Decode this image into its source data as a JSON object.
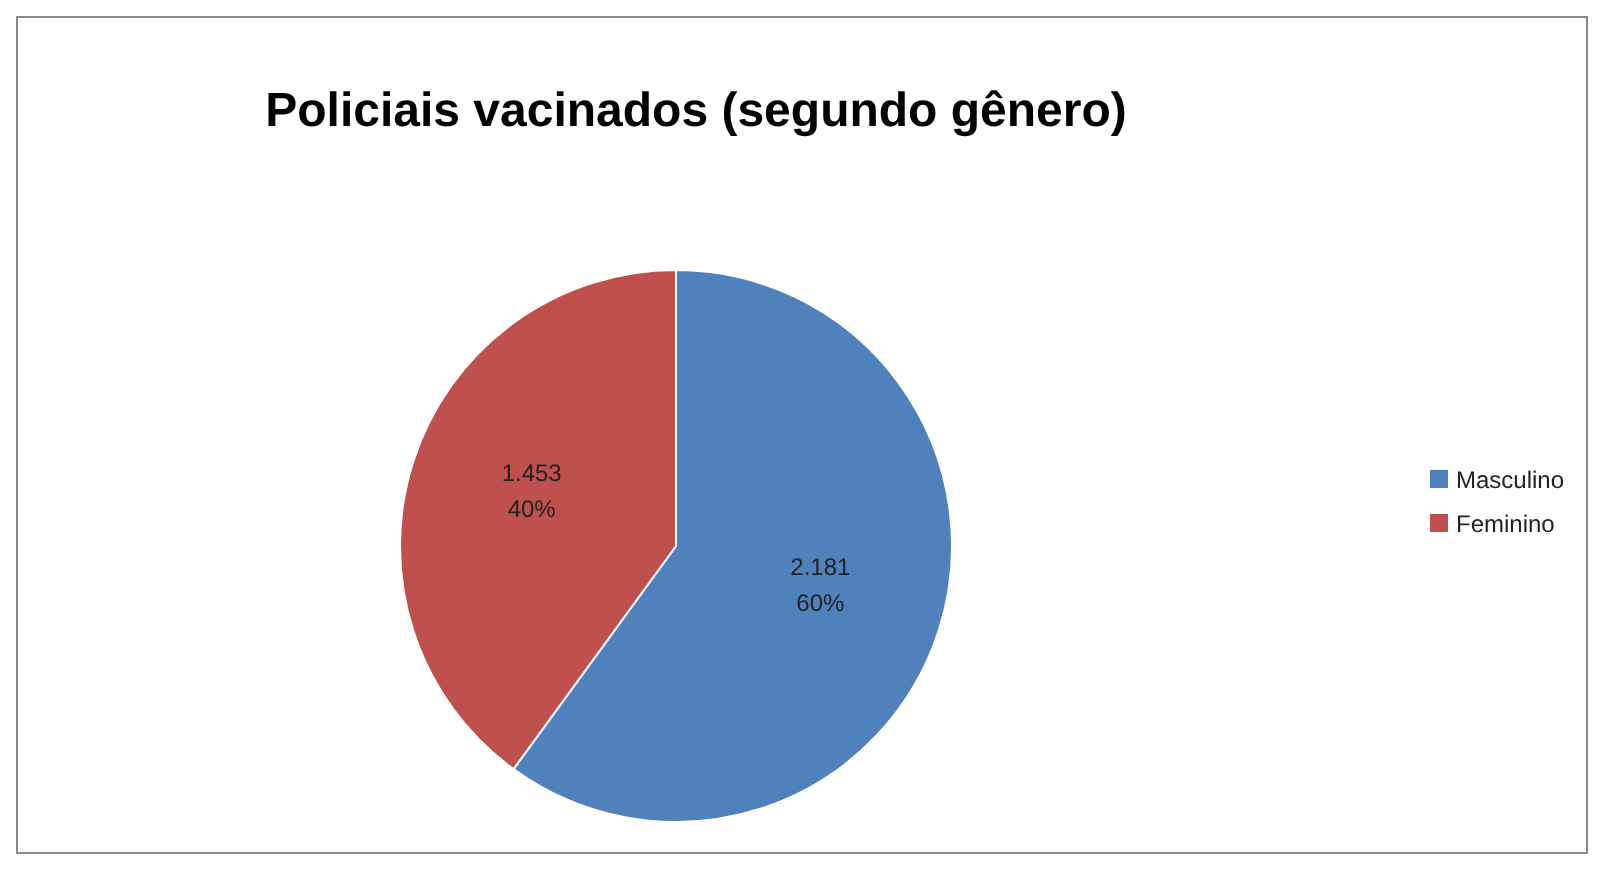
{
  "chart_data": {
    "type": "pie",
    "title": "Policiais vacinados (segundo gênero)",
    "categories": [
      "Masculino",
      "Feminino"
    ],
    "values": [
      2181,
      1453
    ],
    "colors": [
      "#4f81bd",
      "#c0504d"
    ],
    "value_labels": [
      "2.181\n60%",
      "1.453\n40%"
    ],
    "legend": "right"
  }
}
